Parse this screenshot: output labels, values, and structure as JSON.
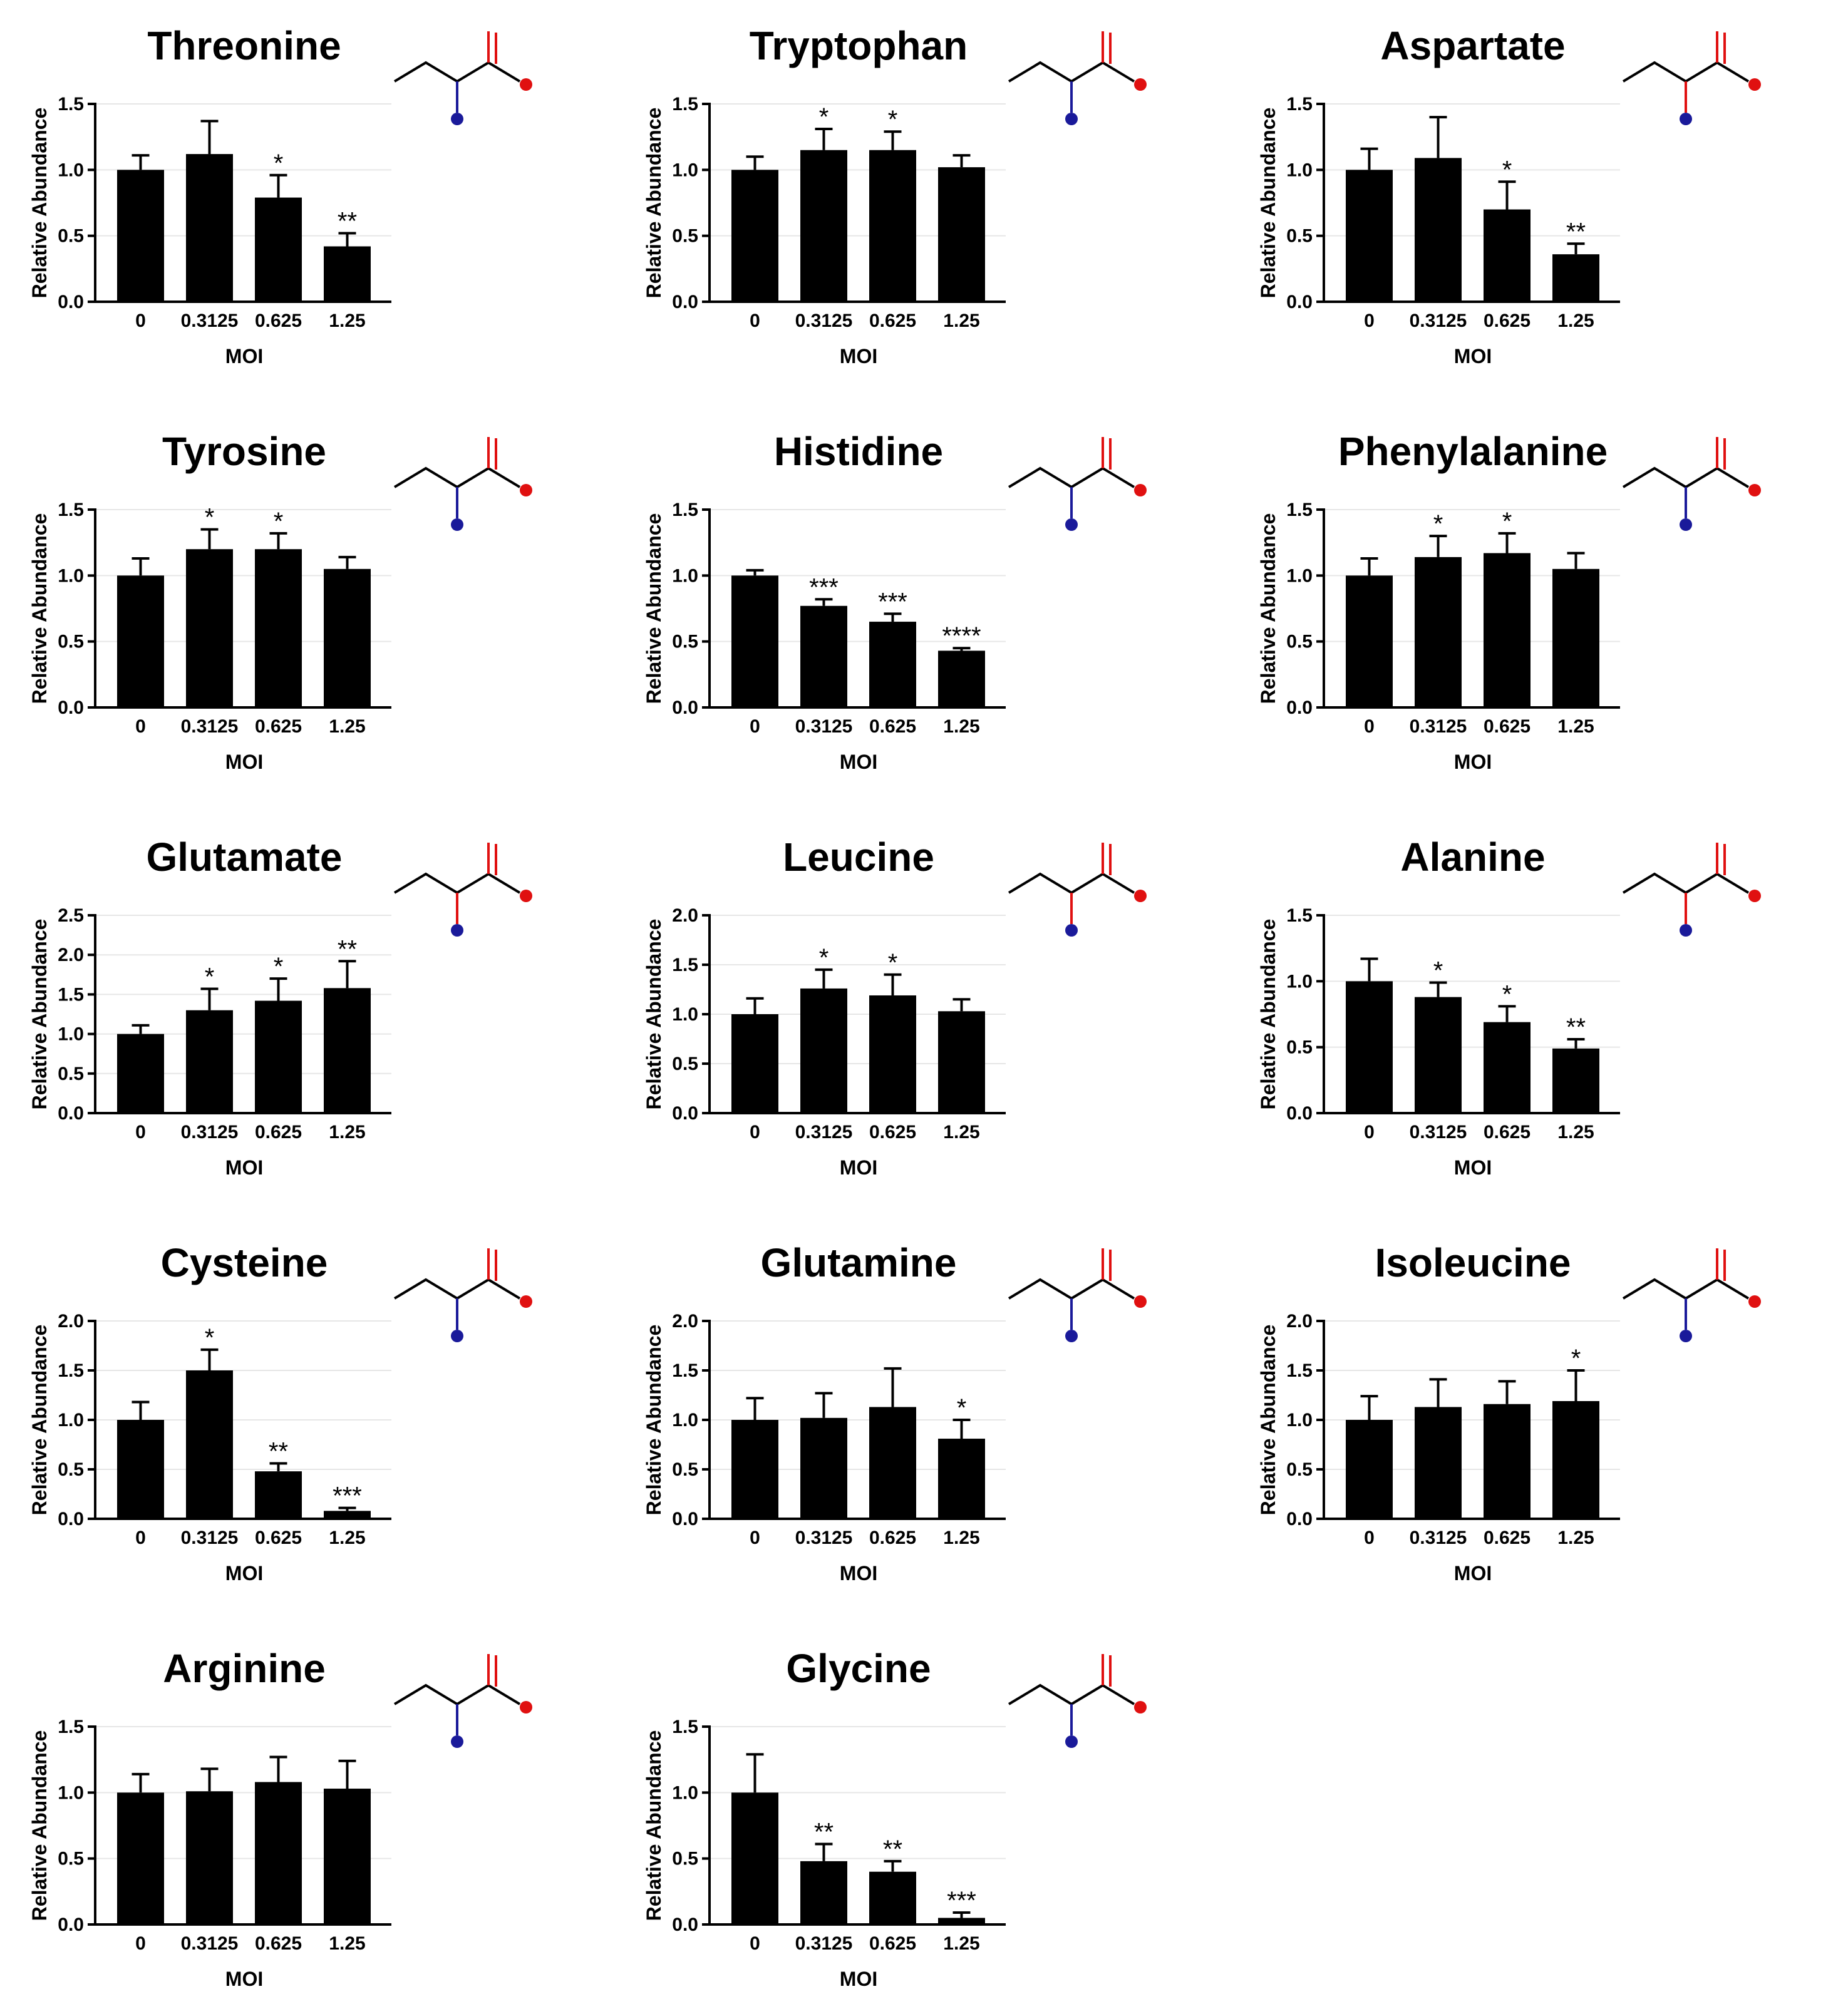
{
  "chart_data": [
    {
      "type": "bar",
      "title": "Threonine",
      "xlabel": "MOI",
      "ylabel": "Relative Abundance",
      "categories": [
        "0",
        "0.3125",
        "0.625",
        "1.25"
      ],
      "values": [
        1.0,
        1.12,
        0.79,
        0.42
      ],
      "errors": [
        0.11,
        0.25,
        0.17,
        0.1
      ],
      "significance": [
        "",
        "",
        "*",
        "**"
      ],
      "ylim": [
        0,
        1.5
      ],
      "yticks": [
        "0.0",
        "0.5",
        "1.0",
        "1.5"
      ],
      "structure_color": "#1a1a9a"
    },
    {
      "type": "bar",
      "title": "Tryptophan",
      "xlabel": "MOI",
      "ylabel": "Relative Abundance",
      "categories": [
        "0",
        "0.3125",
        "0.625",
        "1.25"
      ],
      "values": [
        1.0,
        1.15,
        1.15,
        1.02
      ],
      "errors": [
        0.1,
        0.16,
        0.14,
        0.09
      ],
      "significance": [
        "",
        "*",
        "*",
        ""
      ],
      "ylim": [
        0,
        1.5
      ],
      "yticks": [
        "0.0",
        "0.5",
        "1.0",
        "1.5"
      ],
      "structure_color": "#1a1a9a"
    },
    {
      "type": "bar",
      "title": "Aspartate",
      "xlabel": "MOI",
      "ylabel": "Relative Abundance",
      "categories": [
        "0",
        "0.3125",
        "0.625",
        "1.25"
      ],
      "values": [
        1.0,
        1.09,
        0.7,
        0.36
      ],
      "errors": [
        0.16,
        0.31,
        0.21,
        0.08
      ],
      "significance": [
        "",
        "",
        "*",
        "**"
      ],
      "ylim": [
        0,
        1.5
      ],
      "yticks": [
        "0.0",
        "0.5",
        "1.0",
        "1.5"
      ],
      "structure_color": "#e01010"
    },
    {
      "type": "bar",
      "title": "Tyrosine",
      "xlabel": "MOI",
      "ylabel": "Relative Abundance",
      "categories": [
        "0",
        "0.3125",
        "0.625",
        "1.25"
      ],
      "values": [
        1.0,
        1.2,
        1.2,
        1.05
      ],
      "errors": [
        0.13,
        0.15,
        0.12,
        0.09
      ],
      "significance": [
        "",
        "*",
        "*",
        ""
      ],
      "ylim": [
        0,
        1.5
      ],
      "yticks": [
        "0.0",
        "0.5",
        "1.0",
        "1.5"
      ],
      "structure_color": "#1a1a9a"
    },
    {
      "type": "bar",
      "title": "Histidine",
      "xlabel": "MOI",
      "ylabel": "Relative Abundance",
      "categories": [
        "0",
        "0.3125",
        "0.625",
        "1.25"
      ],
      "values": [
        1.0,
        0.77,
        0.65,
        0.43
      ],
      "errors": [
        0.04,
        0.05,
        0.06,
        0.02
      ],
      "significance": [
        "",
        "***",
        "***",
        "****"
      ],
      "ylim": [
        0,
        1.5
      ],
      "yticks": [
        "0.0",
        "0.5",
        "1.0",
        "1.5"
      ],
      "structure_color": "#1a1a9a"
    },
    {
      "type": "bar",
      "title": "Phenylalanine",
      "xlabel": "MOI",
      "ylabel": "Relative Abundance",
      "categories": [
        "0",
        "0.3125",
        "0.625",
        "1.25"
      ],
      "values": [
        1.0,
        1.14,
        1.17,
        1.05
      ],
      "errors": [
        0.13,
        0.16,
        0.15,
        0.12
      ],
      "significance": [
        "",
        "*",
        "*",
        ""
      ],
      "ylim": [
        0,
        1.5
      ],
      "yticks": [
        "0.0",
        "0.5",
        "1.0",
        "1.5"
      ],
      "structure_color": "#1a1a9a"
    },
    {
      "type": "bar",
      "title": "Glutamate",
      "xlabel": "MOI",
      "ylabel": "Relative Abundance",
      "categories": [
        "0",
        "0.3125",
        "0.625",
        "1.25"
      ],
      "values": [
        1.0,
        1.3,
        1.42,
        1.58
      ],
      "errors": [
        0.11,
        0.27,
        0.28,
        0.34
      ],
      "significance": [
        "",
        "*",
        "*",
        "**"
      ],
      "ylim": [
        0,
        2.5
      ],
      "yticks": [
        "0.0",
        "0.5",
        "1.0",
        "1.5",
        "2.0",
        "2.5"
      ],
      "structure_color": "#e01010"
    },
    {
      "type": "bar",
      "title": "Leucine",
      "xlabel": "MOI",
      "ylabel": "Relative Abundance",
      "categories": [
        "0",
        "0.3125",
        "0.625",
        "1.25"
      ],
      "values": [
        1.0,
        1.26,
        1.19,
        1.03
      ],
      "errors": [
        0.16,
        0.19,
        0.21,
        0.12
      ],
      "significance": [
        "",
        "*",
        "*",
        ""
      ],
      "ylim": [
        0,
        2.0
      ],
      "yticks": [
        "0.0",
        "0.5",
        "1.0",
        "1.5",
        "2.0"
      ],
      "structure_color": "#e01010"
    },
    {
      "type": "bar",
      "title": "Alanine",
      "xlabel": "MOI",
      "ylabel": "Relative Abundance",
      "categories": [
        "0",
        "0.3125",
        "0.625",
        "1.25"
      ],
      "values": [
        1.0,
        0.88,
        0.69,
        0.49
      ],
      "errors": [
        0.17,
        0.11,
        0.12,
        0.07
      ],
      "significance": [
        "",
        "*",
        "*",
        "**"
      ],
      "ylim": [
        0,
        1.5
      ],
      "yticks": [
        "0.0",
        "0.5",
        "1.0",
        "1.5"
      ],
      "structure_color": "#e01010"
    },
    {
      "type": "bar",
      "title": "Cysteine",
      "xlabel": "MOI",
      "ylabel": "Relative Abundance",
      "categories": [
        "0",
        "0.3125",
        "0.625",
        "1.25"
      ],
      "values": [
        1.0,
        1.5,
        0.48,
        0.08
      ],
      "errors": [
        0.18,
        0.21,
        0.08,
        0.03
      ],
      "significance": [
        "",
        "*",
        "**",
        "***"
      ],
      "ylim": [
        0,
        2.0
      ],
      "yticks": [
        "0.0",
        "0.5",
        "1.0",
        "1.5",
        "2.0"
      ],
      "structure_color": "#1a1a9a"
    },
    {
      "type": "bar",
      "title": "Glutamine",
      "xlabel": "MOI",
      "ylabel": "Relative Abundance",
      "categories": [
        "0",
        "0.3125",
        "0.625",
        "1.25"
      ],
      "values": [
        1.0,
        1.02,
        1.13,
        0.81
      ],
      "errors": [
        0.22,
        0.25,
        0.39,
        0.19
      ],
      "significance": [
        "",
        "",
        "",
        "*"
      ],
      "ylim": [
        0,
        2.0
      ],
      "yticks": [
        "0.0",
        "0.5",
        "1.0",
        "1.5",
        "2.0"
      ],
      "structure_color": "#1a1a9a"
    },
    {
      "type": "bar",
      "title": "Isoleucine",
      "xlabel": "MOI",
      "ylabel": "Relative Abundance",
      "categories": [
        "0",
        "0.3125",
        "0.625",
        "1.25"
      ],
      "values": [
        1.0,
        1.13,
        1.16,
        1.19
      ],
      "errors": [
        0.24,
        0.28,
        0.23,
        0.31
      ],
      "significance": [
        "",
        "",
        "",
        "*"
      ],
      "ylim": [
        0,
        2.0
      ],
      "yticks": [
        "0.0",
        "0.5",
        "1.0",
        "1.5",
        "2.0"
      ],
      "structure_color": "#1a1a9a"
    },
    {
      "type": "bar",
      "title": "Arginine",
      "xlabel": "MOI",
      "ylabel": "Relative Abundance",
      "categories": [
        "0",
        "0.3125",
        "0.625",
        "1.25"
      ],
      "values": [
        1.0,
        1.01,
        1.08,
        1.03
      ],
      "errors": [
        0.14,
        0.17,
        0.19,
        0.21
      ],
      "significance": [
        "",
        "",
        "",
        ""
      ],
      "ylim": [
        0,
        1.5
      ],
      "yticks": [
        "0.0",
        "0.5",
        "1.0",
        "1.5"
      ],
      "structure_color": "#1a1a9a"
    },
    {
      "type": "bar",
      "title": "Glycine",
      "xlabel": "MOI",
      "ylabel": "Relative Abundance",
      "categories": [
        "0",
        "0.3125",
        "0.625",
        "1.25"
      ],
      "values": [
        1.0,
        0.48,
        0.4,
        0.05
      ],
      "errors": [
        0.29,
        0.13,
        0.08,
        0.04
      ],
      "significance": [
        "",
        "**",
        "**",
        "***"
      ],
      "ylim": [
        0,
        1.5
      ],
      "yticks": [
        "0.0",
        "0.5",
        "1.0",
        "1.5"
      ],
      "structure_color": "#1a1a9a"
    }
  ],
  "colors": {
    "bar": "#000000",
    "axis": "#000000",
    "grid": "#e6e6e6",
    "amine": "#1a1a9a",
    "carboxyl": "#e01010",
    "sulfur": "#8a8a1a"
  },
  "icons": [
    "molecular-structure-icon"
  ]
}
